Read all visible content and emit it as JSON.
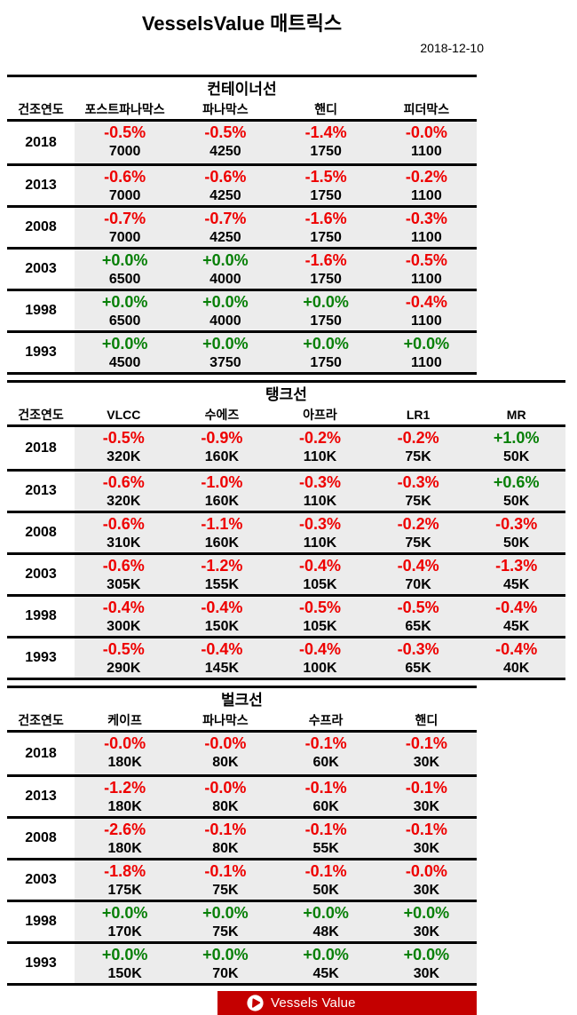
{
  "header": {
    "title": "VesselsValue 매트릭스",
    "date": "2018-12-10"
  },
  "colors": {
    "negative": "#EE0000",
    "positive": "#088008",
    "row_bg": "#ECECEC",
    "banner_bg": "#C40000"
  },
  "year_col_header": "건조연도",
  "tables": [
    {
      "title": "컨테이너선",
      "wide": false,
      "columns": [
        "포스트파나막스",
        "파나막스",
        "핸디",
        "피더막스"
      ],
      "rows": [
        {
          "year": "2018",
          "cells": [
            {
              "pct": "-0.5%",
              "val": "7000"
            },
            {
              "pct": "-0.5%",
              "val": "4250"
            },
            {
              "pct": "-1.4%",
              "val": "1750"
            },
            {
              "pct": "-0.0%",
              "val": "1100"
            }
          ]
        },
        {
          "year": "2013",
          "cells": [
            {
              "pct": "-0.6%",
              "val": "7000"
            },
            {
              "pct": "-0.6%",
              "val": "4250"
            },
            {
              "pct": "-1.5%",
              "val": "1750"
            },
            {
              "pct": "-0.2%",
              "val": "1100"
            }
          ]
        },
        {
          "year": "2008",
          "cells": [
            {
              "pct": "-0.7%",
              "val": "7000"
            },
            {
              "pct": "-0.7%",
              "val": "4250"
            },
            {
              "pct": "-1.6%",
              "val": "1750"
            },
            {
              "pct": "-0.3%",
              "val": "1100"
            }
          ]
        },
        {
          "year": "2003",
          "cells": [
            {
              "pct": "+0.0%",
              "val": "6500"
            },
            {
              "pct": "+0.0%",
              "val": "4000"
            },
            {
              "pct": "-1.6%",
              "val": "1750"
            },
            {
              "pct": "-0.5%",
              "val": "1100"
            }
          ]
        },
        {
          "year": "1998",
          "cells": [
            {
              "pct": "+0.0%",
              "val": "6500"
            },
            {
              "pct": "+0.0%",
              "val": "4000"
            },
            {
              "pct": "+0.0%",
              "val": "1750"
            },
            {
              "pct": "-0.4%",
              "val": "1100"
            }
          ]
        },
        {
          "year": "1993",
          "cells": [
            {
              "pct": "+0.0%",
              "val": "4500"
            },
            {
              "pct": "+0.0%",
              "val": "3750"
            },
            {
              "pct": "+0.0%",
              "val": "1750"
            },
            {
              "pct": "+0.0%",
              "val": "1100"
            }
          ]
        }
      ]
    },
    {
      "title": "탱크선",
      "wide": true,
      "columns": [
        "VLCC",
        "수에즈",
        "아프라",
        "LR1",
        "MR"
      ],
      "rows": [
        {
          "year": "2018",
          "cells": [
            {
              "pct": "-0.5%",
              "val": "320K"
            },
            {
              "pct": "-0.9%",
              "val": "160K"
            },
            {
              "pct": "-0.2%",
              "val": "110K"
            },
            {
              "pct": "-0.2%",
              "val": "75K"
            },
            {
              "pct": "+1.0%",
              "val": "50K"
            }
          ]
        },
        {
          "year": "2013",
          "cells": [
            {
              "pct": "-0.6%",
              "val": "320K"
            },
            {
              "pct": "-1.0%",
              "val": "160K"
            },
            {
              "pct": "-0.3%",
              "val": "110K"
            },
            {
              "pct": "-0.3%",
              "val": "75K"
            },
            {
              "pct": "+0.6%",
              "val": "50K"
            }
          ]
        },
        {
          "year": "2008",
          "cells": [
            {
              "pct": "-0.6%",
              "val": "310K"
            },
            {
              "pct": "-1.1%",
              "val": "160K"
            },
            {
              "pct": "-0.3%",
              "val": "110K"
            },
            {
              "pct": "-0.2%",
              "val": "75K"
            },
            {
              "pct": "-0.3%",
              "val": "50K"
            }
          ]
        },
        {
          "year": "2003",
          "cells": [
            {
              "pct": "-0.6%",
              "val": "305K"
            },
            {
              "pct": "-1.2%",
              "val": "155K"
            },
            {
              "pct": "-0.4%",
              "val": "105K"
            },
            {
              "pct": "-0.4%",
              "val": "70K"
            },
            {
              "pct": "-1.3%",
              "val": "45K"
            }
          ]
        },
        {
          "year": "1998",
          "cells": [
            {
              "pct": "-0.4%",
              "val": "300K"
            },
            {
              "pct": "-0.4%",
              "val": "150K"
            },
            {
              "pct": "-0.5%",
              "val": "105K"
            },
            {
              "pct": "-0.5%",
              "val": "65K"
            },
            {
              "pct": "-0.4%",
              "val": "45K"
            }
          ]
        },
        {
          "year": "1993",
          "cells": [
            {
              "pct": "-0.5%",
              "val": "290K"
            },
            {
              "pct": "-0.4%",
              "val": "145K"
            },
            {
              "pct": "-0.4%",
              "val": "100K"
            },
            {
              "pct": "-0.3%",
              "val": "65K"
            },
            {
              "pct": "-0.4%",
              "val": "40K"
            }
          ]
        }
      ]
    },
    {
      "title": "벌크선",
      "wide": false,
      "columns": [
        "케이프",
        "파나막스",
        "수프라",
        "핸디"
      ],
      "rows": [
        {
          "year": "2018",
          "cells": [
            {
              "pct": "-0.0%",
              "val": "180K"
            },
            {
              "pct": "-0.0%",
              "val": "80K"
            },
            {
              "pct": "-0.1%",
              "val": "60K"
            },
            {
              "pct": "-0.1%",
              "val": "30K"
            }
          ]
        },
        {
          "year": "2013",
          "cells": [
            {
              "pct": "-1.2%",
              "val": "180K"
            },
            {
              "pct": "-0.0%",
              "val": "80K"
            },
            {
              "pct": "-0.1%",
              "val": "60K"
            },
            {
              "pct": "-0.1%",
              "val": "30K"
            }
          ]
        },
        {
          "year": "2008",
          "cells": [
            {
              "pct": "-2.6%",
              "val": "180K"
            },
            {
              "pct": "-0.1%",
              "val": "80K"
            },
            {
              "pct": "-0.1%",
              "val": "55K"
            },
            {
              "pct": "-0.1%",
              "val": "30K"
            }
          ]
        },
        {
          "year": "2003",
          "cells": [
            {
              "pct": "-1.8%",
              "val": "175K"
            },
            {
              "pct": "-0.1%",
              "val": "75K"
            },
            {
              "pct": "-0.1%",
              "val": "50K"
            },
            {
              "pct": "-0.0%",
              "val": "30K"
            }
          ]
        },
        {
          "year": "1998",
          "cells": [
            {
              "pct": "+0.0%",
              "val": "170K"
            },
            {
              "pct": "+0.0%",
              "val": "75K"
            },
            {
              "pct": "+0.0%",
              "val": "48K"
            },
            {
              "pct": "+0.0%",
              "val": "30K"
            }
          ]
        },
        {
          "year": "1993",
          "cells": [
            {
              "pct": "+0.0%",
              "val": "150K"
            },
            {
              "pct": "+0.0%",
              "val": "70K"
            },
            {
              "pct": "+0.0%",
              "val": "45K"
            },
            {
              "pct": "+0.0%",
              "val": "30K"
            }
          ]
        }
      ]
    }
  ],
  "footer": {
    "logo_text": "Vessels Value"
  }
}
